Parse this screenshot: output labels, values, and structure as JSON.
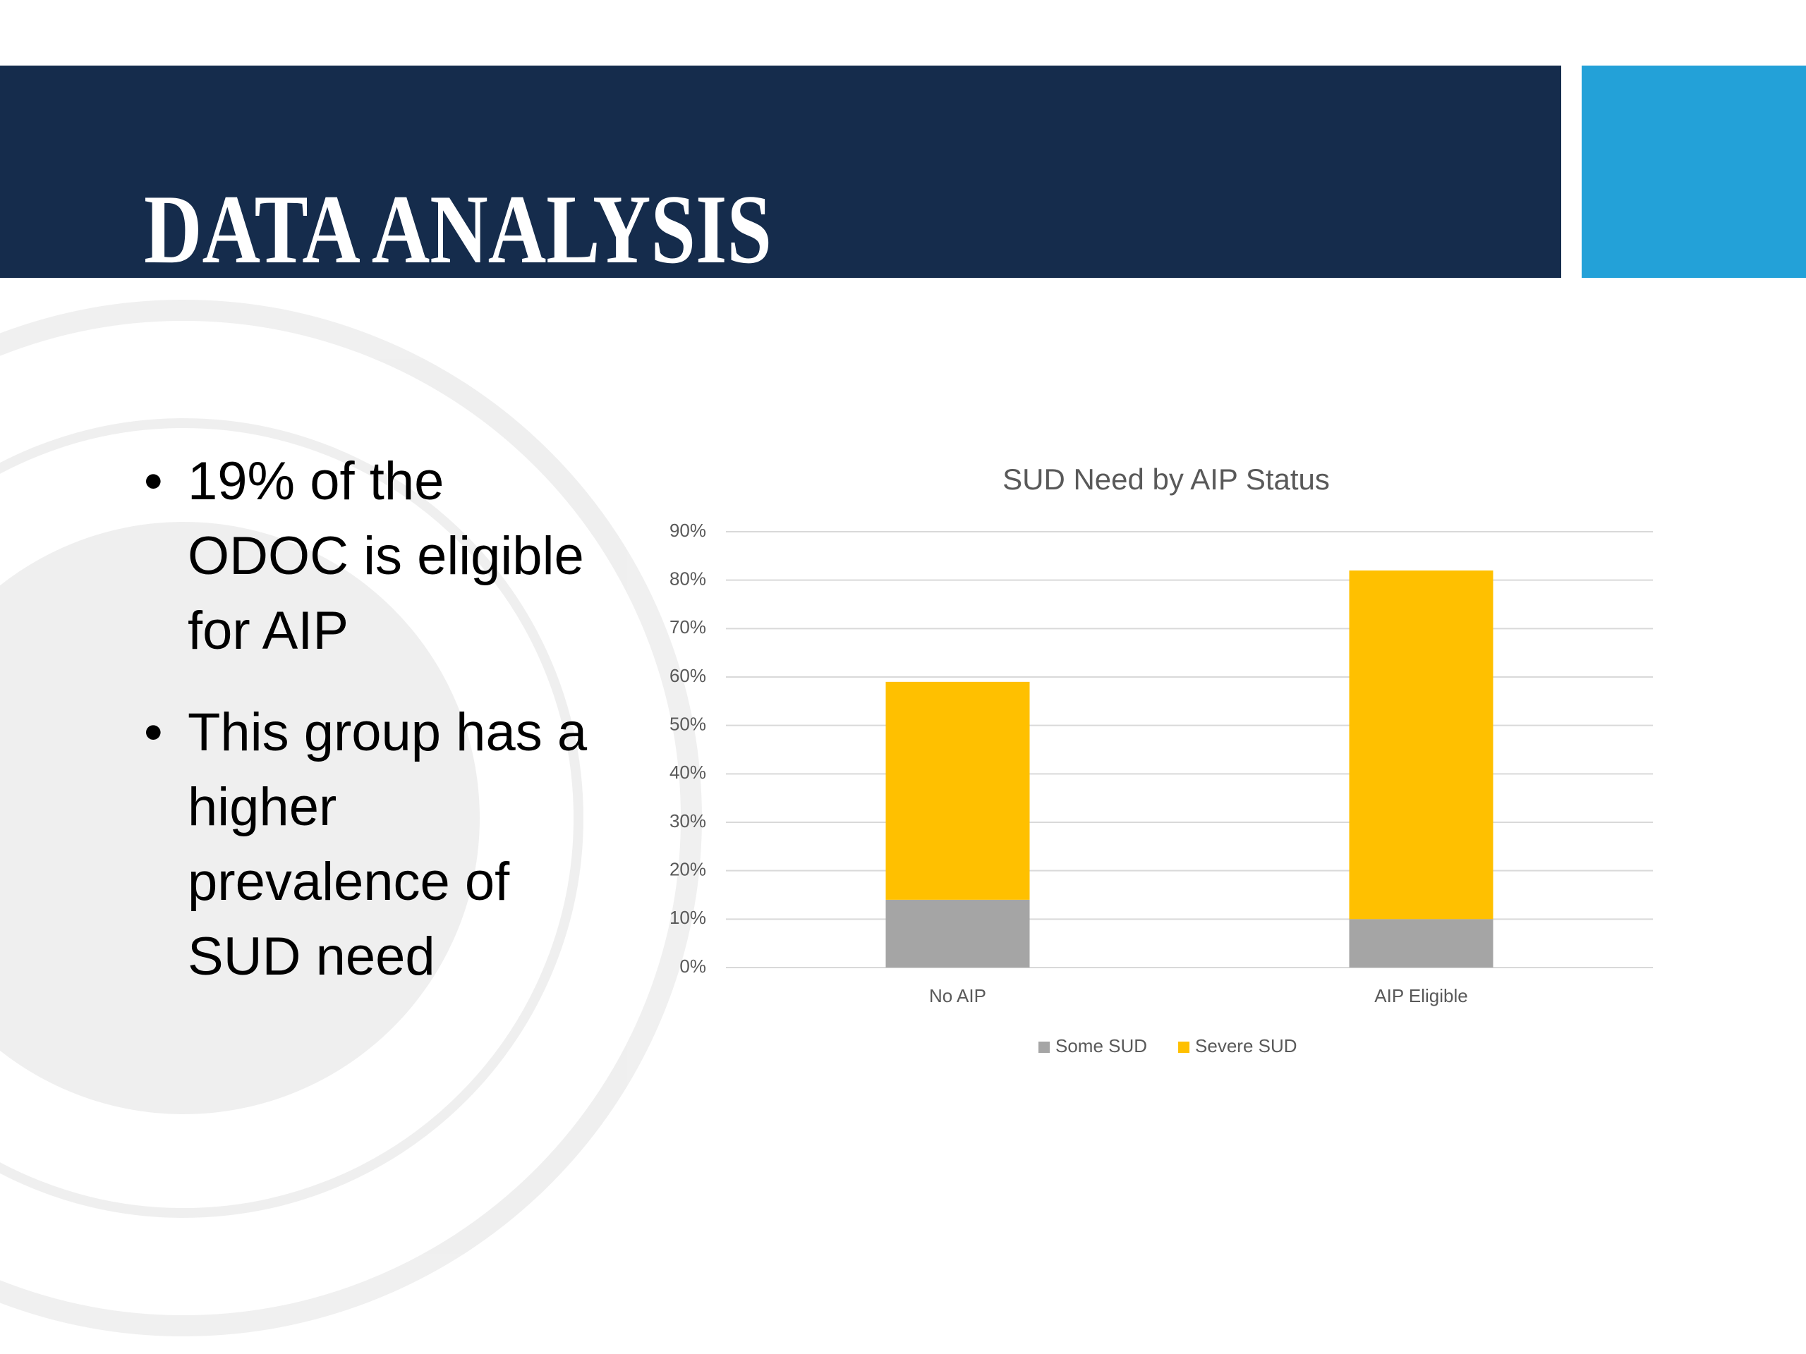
{
  "slide": {
    "title": "DATA ANALYSIS",
    "bullets": [
      "19% of the ODOC is eligible for AIP",
      "This group has a higher prevalence of SUD need"
    ]
  },
  "chart_data": {
    "type": "stacked_bar",
    "title": "SUD Need by AIP Status",
    "categories": [
      "No AIP",
      "AIP Eligible"
    ],
    "series": [
      {
        "name": "Some SUD",
        "color": "#a5a5a5",
        "values": [
          14,
          10
        ]
      },
      {
        "name": "Severe SUD",
        "color": "#ffc000",
        "values": [
          45,
          72
        ]
      }
    ],
    "ylim": [
      0,
      90
    ],
    "yticks": [
      {
        "value": 0,
        "label": "0%"
      },
      {
        "value": 10,
        "label": "10%"
      },
      {
        "value": 20,
        "label": "20%"
      },
      {
        "value": 30,
        "label": "30%"
      },
      {
        "value": 40,
        "label": "40%"
      },
      {
        "value": 50,
        "label": "50%"
      },
      {
        "value": 60,
        "label": "60%"
      },
      {
        "value": 70,
        "label": "70%"
      },
      {
        "value": 80,
        "label": "80%"
      },
      {
        "value": 90,
        "label": "90%"
      }
    ],
    "grid": true,
    "legend": "bottom"
  }
}
